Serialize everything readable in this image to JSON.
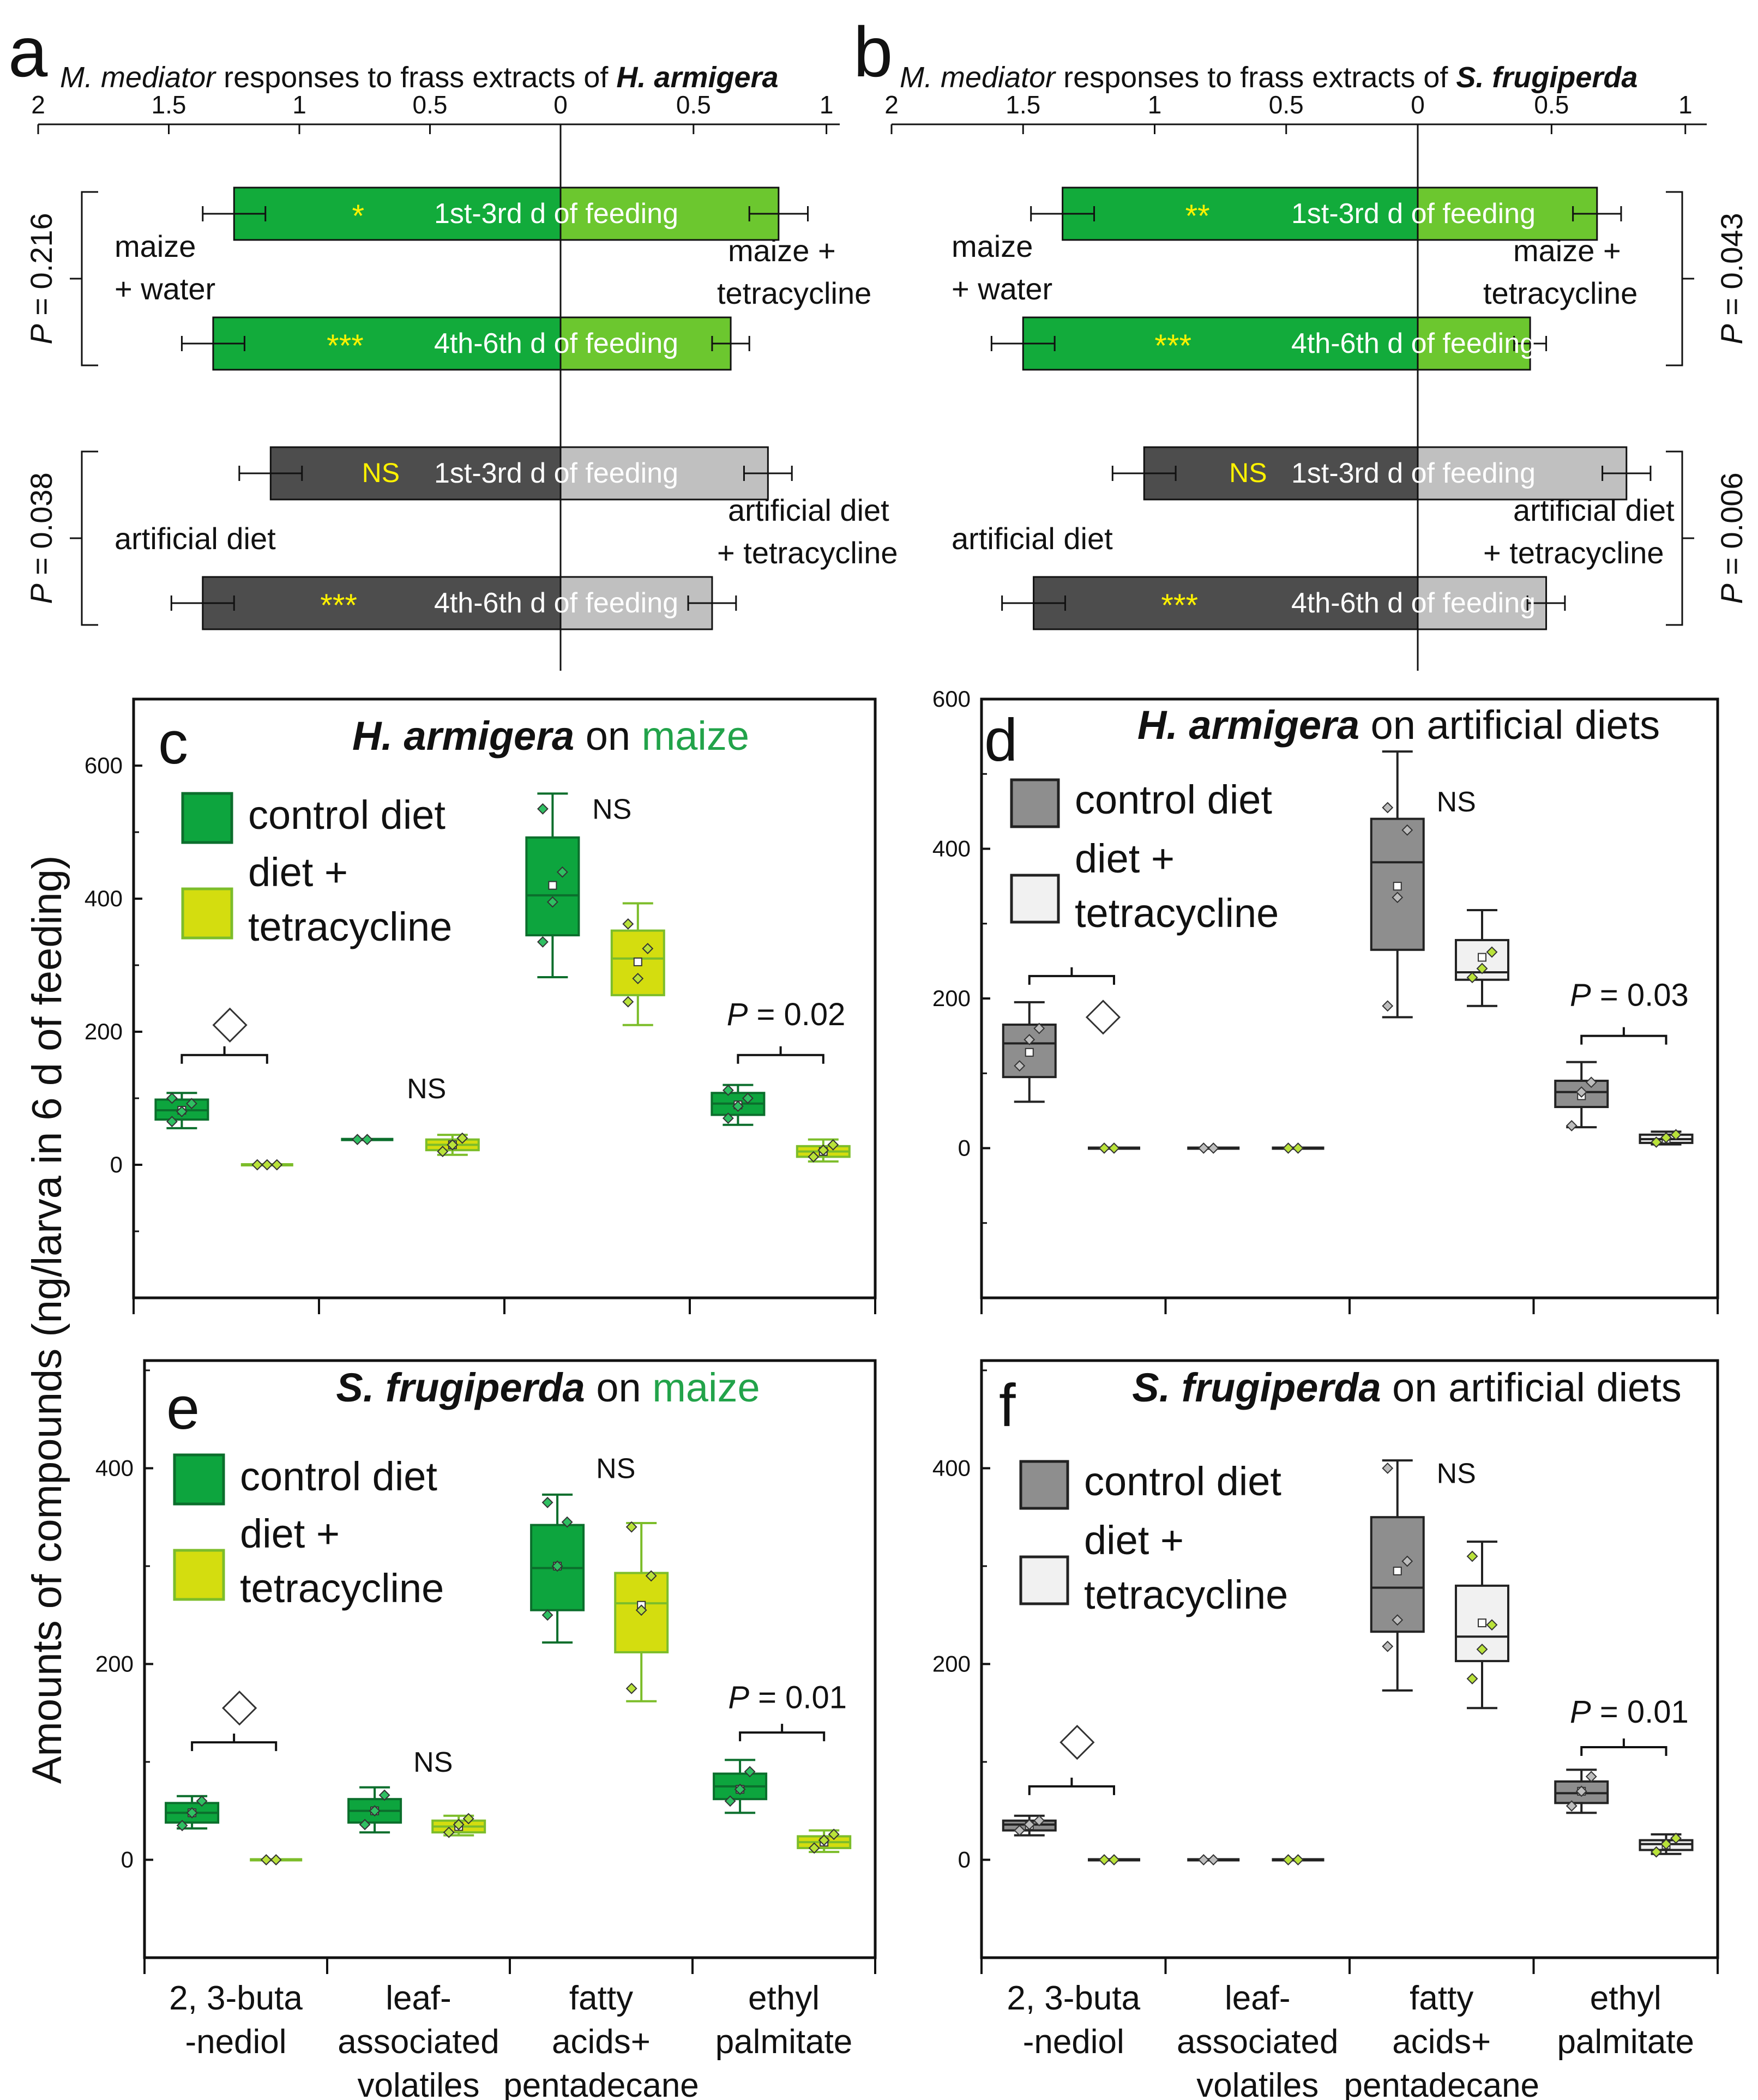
{
  "colors": {
    "green_dark": "#12ab3b",
    "green_light": "#6cc72f",
    "green_box": "#0da53e",
    "green_box_edge": "#0b6e2c",
    "yellow_box": "#d4dd0f",
    "yellow_box_edge": "#7cbd2a",
    "gray_dark": "#4d4d4d",
    "gray_light": "#c0c0c0",
    "gray_box": "#8e8e8e",
    "white_box": "#f1f1f1",
    "sig_yellow": "#fff200",
    "maize_text": "#22a34a"
  },
  "y_axis_label": "Amounts of compounds (ng/larva in 6 d of feeding)",
  "x_categories": [
    "2, 3-buta\n-nediol",
    "leaf-\nassociated\nvolatiles",
    "fatty\nacids+\npentadecane",
    "ethyl\npalmitate"
  ],
  "chart_data": [
    {
      "panel": "a",
      "type": "bar",
      "orientation": "horizontal-diverging",
      "title_prefix": "M. mediator",
      "title_mid": " responses to frass extracts of ",
      "title_species": "H. armigera",
      "axis_ticks": [
        "2",
        "1.5",
        "1",
        "0.5",
        "0",
        "0.5",
        "1"
      ],
      "xlim_left": 2,
      "xlim_right": 1.05,
      "groups": [
        {
          "left_label": [
            "maize",
            "+ water"
          ],
          "right_label": [
            "maize +",
            "tetracycline"
          ],
          "p_text": "P = 0.216",
          "color_left": "green_dark",
          "color_right": "green_light",
          "bars": [
            {
              "label": "1st-3rd d of feeding",
              "sig": "*",
              "left": 1.25,
              "left_err": 0.12,
              "right": 0.82,
              "right_err": 0.11
            },
            {
              "label": "4th-6th d of feeding",
              "sig": "***",
              "left": 1.33,
              "left_err": 0.12,
              "right": 0.64,
              "right_err": 0.07
            }
          ]
        },
        {
          "left_label": [
            "artificial diet"
          ],
          "right_label": [
            "artificial diet",
            "+ tetracycline"
          ],
          "p_text": "P = 0.038",
          "color_left": "gray_dark",
          "color_right": "gray_light",
          "bars": [
            {
              "label": "1st-3rd d of feeding",
              "sig": "NS",
              "left": 1.11,
              "left_err": 0.12,
              "right": 0.78,
              "right_err": 0.09
            },
            {
              "label": "4th-6th d of feeding",
              "sig": "***",
              "left": 1.37,
              "left_err": 0.12,
              "right": 0.57,
              "right_err": 0.09
            }
          ]
        }
      ]
    },
    {
      "panel": "b",
      "type": "bar",
      "orientation": "horizontal-diverging",
      "title_prefix": "M. mediator",
      "title_mid": " responses to frass extracts of ",
      "title_species": "S. frugiperda",
      "axis_ticks": [
        "2",
        "1.5",
        "1",
        "0.5",
        "0",
        "0.5",
        "1"
      ],
      "xlim_left": 2,
      "xlim_right": 1.08,
      "groups": [
        {
          "left_label": [
            "maize",
            "+ water"
          ],
          "right_label": [
            "maize +",
            "tetracycline"
          ],
          "p_text": "P = 0.043",
          "color_left": "green_dark",
          "color_right": "green_light",
          "bars": [
            {
              "label": "1st-3rd d of feeding",
              "sig": "**",
              "left": 1.35,
              "left_err": 0.12,
              "right": 0.67,
              "right_err": 0.09
            },
            {
              "label": "4th-6th d of feeding",
              "sig": "***",
              "left": 1.5,
              "left_err": 0.12,
              "right": 0.42,
              "right_err": 0.06
            }
          ]
        },
        {
          "left_label": [
            "artificial diet"
          ],
          "right_label": [
            "artificial diet",
            "+ tetracycline"
          ],
          "p_text": "P = 0.006",
          "color_left": "gray_dark",
          "color_right": "gray_light",
          "bars": [
            {
              "label": "1st-3rd d of feeding",
              "sig": "NS",
              "left": 1.04,
              "left_err": 0.12,
              "right": 0.78,
              "right_err": 0.09
            },
            {
              "label": "4th-6th d of feeding",
              "sig": "***",
              "left": 1.46,
              "left_err": 0.12,
              "right": 0.48,
              "right_err": 0.07
            }
          ]
        }
      ]
    },
    {
      "panel": "c",
      "type": "box",
      "title_species": "H. armigera",
      "title_mid": " on ",
      "title_host": "maize",
      "host_colored": true,
      "ylim": [
        -200,
        700
      ],
      "yticks": [
        0,
        200,
        400,
        600
      ],
      "legend": [
        "control diet",
        "diet +",
        "tetracycline"
      ],
      "box_colors": [
        "green_box",
        "yellow_box"
      ],
      "edge_colors": [
        "green_box_edge",
        "yellow_box_edge"
      ],
      "boxes": [
        {
          "cat": 0,
          "s": 0,
          "min": 55,
          "q1": 68,
          "med": 82,
          "q3": 98,
          "max": 108,
          "mean": 82,
          "pts": [
            65,
            80,
            92,
            100
          ]
        },
        {
          "cat": 0,
          "s": 1,
          "min": 0,
          "q1": 0,
          "med": 0,
          "q3": 0,
          "max": 0,
          "mean": 0,
          "pts": [
            0,
            0,
            0
          ]
        },
        {
          "cat": 1,
          "s": 0,
          "min": 38,
          "q1": 38,
          "med": 38,
          "q3": 38,
          "max": 38,
          "mean": 38,
          "pts": [
            38,
            38
          ]
        },
        {
          "cat": 1,
          "s": 1,
          "min": 15,
          "q1": 22,
          "med": 30,
          "q3": 38,
          "max": 45,
          "mean": 30,
          "pts": [
            20,
            30,
            40
          ]
        },
        {
          "cat": 2,
          "s": 0,
          "min": 282,
          "q1": 345,
          "med": 405,
          "q3": 492,
          "max": 558,
          "mean": 420,
          "pts": [
            335,
            395,
            440,
            535
          ]
        },
        {
          "cat": 2,
          "s": 1,
          "min": 210,
          "q1": 255,
          "med": 310,
          "q3": 352,
          "max": 393,
          "mean": 305,
          "pts": [
            245,
            280,
            325,
            362
          ]
        },
        {
          "cat": 3,
          "s": 0,
          "min": 60,
          "q1": 75,
          "med": 92,
          "q3": 108,
          "max": 120,
          "mean": 90,
          "pts": [
            70,
            88,
            100,
            112
          ]
        },
        {
          "cat": 3,
          "s": 1,
          "min": 5,
          "q1": 12,
          "med": 20,
          "q3": 28,
          "max": 38,
          "mean": 20,
          "pts": [
            12,
            22,
            30
          ]
        }
      ],
      "annotations": [
        {
          "cat": 2,
          "text": "NS",
          "y": 520
        },
        {
          "cat": 1,
          "text": "NS",
          "y": 100
        }
      ],
      "brackets": [
        {
          "cat": 0,
          "y": 165,
          "label": "◇",
          "label_y": 210
        },
        {
          "cat": 3,
          "y": 165,
          "label": "P = 0.02",
          "label_y": 210
        }
      ]
    },
    {
      "panel": "d",
      "type": "box",
      "title_species": "H. armigera",
      "title_mid": " on ",
      "title_host": "artificial diets",
      "host_colored": false,
      "ylim": [
        -200,
        600
      ],
      "yticks": [
        0,
        200,
        400,
        600
      ],
      "legend": [
        "control diet",
        "diet +",
        "tetracycline"
      ],
      "box_colors": [
        "gray_box",
        "white_box"
      ],
      "edge_colors": [
        "#222222",
        "#222222"
      ],
      "boxes": [
        {
          "cat": 0,
          "s": 0,
          "min": 62,
          "q1": 95,
          "med": 140,
          "q3": 165,
          "max": 195,
          "mean": 128,
          "pts": [
            110,
            145,
            160
          ]
        },
        {
          "cat": 0,
          "s": 1,
          "min": 0,
          "q1": 0,
          "med": 0,
          "q3": 0,
          "max": 0,
          "mean": 0,
          "pts": [
            0,
            0
          ]
        },
        {
          "cat": 1,
          "s": 0,
          "min": 0,
          "q1": 0,
          "med": 0,
          "q3": 0,
          "max": 0,
          "mean": 0,
          "pts": [
            0,
            0
          ]
        },
        {
          "cat": 1,
          "s": 1,
          "min": 0,
          "q1": 0,
          "med": 0,
          "q3": 0,
          "max": 0,
          "mean": 0,
          "pts": [
            0,
            0
          ]
        },
        {
          "cat": 2,
          "s": 0,
          "min": 175,
          "q1": 265,
          "med": 382,
          "q3": 440,
          "max": 530,
          "mean": 350,
          "pts": [
            190,
            335,
            425,
            455
          ]
        },
        {
          "cat": 2,
          "s": 1,
          "min": 190,
          "q1": 225,
          "med": 235,
          "q3": 278,
          "max": 318,
          "mean": 255,
          "pts": [
            228,
            240,
            262
          ]
        },
        {
          "cat": 3,
          "s": 0,
          "min": 28,
          "q1": 55,
          "med": 75,
          "q3": 90,
          "max": 115,
          "mean": 70,
          "pts": [
            30,
            75,
            88
          ]
        },
        {
          "cat": 3,
          "s": 1,
          "min": 5,
          "q1": 7,
          "med": 12,
          "q3": 18,
          "max": 22,
          "mean": 12,
          "pts": [
            8,
            14,
            18
          ]
        }
      ],
      "annotations": [
        {
          "cat": 2,
          "text": "NS",
          "y": 450
        }
      ],
      "brackets": [
        {
          "cat": 0,
          "y": 230,
          "label": "◇",
          "label_y": 175
        },
        {
          "cat": 3,
          "y": 150,
          "label": "P = 0.03",
          "label_y": 190
        }
      ]
    },
    {
      "panel": "e",
      "type": "box",
      "title_species": "S. frugiperda",
      "title_mid": " on ",
      "title_host": "maize",
      "host_colored": true,
      "ylim": [
        -100,
        510
      ],
      "yticks": [
        0,
        200,
        400
      ],
      "legend": [
        "control diet",
        "diet +",
        "tetracycline"
      ],
      "box_colors": [
        "green_box",
        "yellow_box"
      ],
      "edge_colors": [
        "green_box_edge",
        "yellow_box_edge"
      ],
      "boxes": [
        {
          "cat": 0,
          "s": 0,
          "min": 32,
          "q1": 38,
          "med": 48,
          "q3": 58,
          "max": 65,
          "mean": 48,
          "pts": [
            35,
            48,
            60
          ]
        },
        {
          "cat": 0,
          "s": 1,
          "min": 0,
          "q1": 0,
          "med": 0,
          "q3": 0,
          "max": 0,
          "mean": 0,
          "pts": [
            0,
            0
          ]
        },
        {
          "cat": 1,
          "s": 0,
          "min": 28,
          "q1": 38,
          "med": 50,
          "q3": 62,
          "max": 74,
          "mean": 50,
          "pts": [
            36,
            50,
            66
          ]
        },
        {
          "cat": 1,
          "s": 1,
          "min": 25,
          "q1": 28,
          "med": 34,
          "q3": 40,
          "max": 45,
          "mean": 34,
          "pts": [
            28,
            36,
            42
          ]
        },
        {
          "cat": 2,
          "s": 0,
          "min": 222,
          "q1": 255,
          "med": 298,
          "q3": 342,
          "max": 373,
          "mean": 300,
          "pts": [
            250,
            300,
            345,
            365
          ]
        },
        {
          "cat": 2,
          "s": 1,
          "min": 162,
          "q1": 212,
          "med": 262,
          "q3": 293,
          "max": 344,
          "mean": 260,
          "pts": [
            175,
            255,
            290,
            340
          ]
        },
        {
          "cat": 3,
          "s": 0,
          "min": 48,
          "q1": 62,
          "med": 75,
          "q3": 88,
          "max": 102,
          "mean": 72,
          "pts": [
            60,
            72,
            90
          ]
        },
        {
          "cat": 3,
          "s": 1,
          "min": 8,
          "q1": 12,
          "med": 18,
          "q3": 24,
          "max": 30,
          "mean": 18,
          "pts": [
            12,
            20,
            26
          ]
        }
      ],
      "annotations": [
        {
          "cat": 2,
          "text": "NS",
          "y": 390
        },
        {
          "cat": 1,
          "text": "NS",
          "y": 90
        }
      ],
      "brackets": [
        {
          "cat": 0,
          "y": 120,
          "label": "◇",
          "label_y": 155
        },
        {
          "cat": 3,
          "y": 130,
          "label": "P = 0.01",
          "label_y": 155
        }
      ]
    },
    {
      "panel": "f",
      "type": "box",
      "title_species": "S. frugiperda",
      "title_mid": " on ",
      "title_host": "artificial diets",
      "host_colored": false,
      "ylim": [
        -100,
        510
      ],
      "yticks": [
        0,
        200,
        400
      ],
      "legend": [
        "control diet",
        "diet +",
        "tetracycline"
      ],
      "box_colors": [
        "gray_box",
        "white_box"
      ],
      "edge_colors": [
        "#222222",
        "#222222"
      ],
      "boxes": [
        {
          "cat": 0,
          "s": 0,
          "min": 25,
          "q1": 30,
          "med": 36,
          "q3": 40,
          "max": 45,
          "mean": 35,
          "pts": [
            30,
            36,
            40
          ]
        },
        {
          "cat": 0,
          "s": 1,
          "min": 0,
          "q1": 0,
          "med": 0,
          "q3": 0,
          "max": 0,
          "mean": 0,
          "pts": [
            0,
            0
          ]
        },
        {
          "cat": 1,
          "s": 0,
          "min": 0,
          "q1": 0,
          "med": 0,
          "q3": 0,
          "max": 0,
          "mean": 0,
          "pts": [
            0,
            0
          ]
        },
        {
          "cat": 1,
          "s": 1,
          "min": 0,
          "q1": 0,
          "med": 0,
          "q3": 0,
          "max": 0,
          "mean": 0,
          "pts": [
            0,
            0
          ]
        },
        {
          "cat": 2,
          "s": 0,
          "min": 173,
          "q1": 233,
          "med": 278,
          "q3": 350,
          "max": 408,
          "mean": 295,
          "pts": [
            218,
            245,
            305,
            400
          ]
        },
        {
          "cat": 2,
          "s": 1,
          "min": 155,
          "q1": 203,
          "med": 228,
          "q3": 280,
          "max": 325,
          "mean": 242,
          "pts": [
            185,
            215,
            240,
            310
          ]
        },
        {
          "cat": 3,
          "s": 0,
          "min": 48,
          "q1": 58,
          "med": 68,
          "q3": 80,
          "max": 92,
          "mean": 70,
          "pts": [
            55,
            70,
            85
          ]
        },
        {
          "cat": 3,
          "s": 1,
          "min": 6,
          "q1": 10,
          "med": 16,
          "q3": 20,
          "max": 26,
          "mean": 15,
          "pts": [
            8,
            16,
            22
          ]
        }
      ],
      "annotations": [
        {
          "cat": 2,
          "text": "NS",
          "y": 385
        }
      ],
      "brackets": [
        {
          "cat": 0,
          "y": 75,
          "label": "◇",
          "label_y": 120
        },
        {
          "cat": 3,
          "y": 115,
          "label": "P = 0.01",
          "label_y": 140
        }
      ]
    }
  ]
}
